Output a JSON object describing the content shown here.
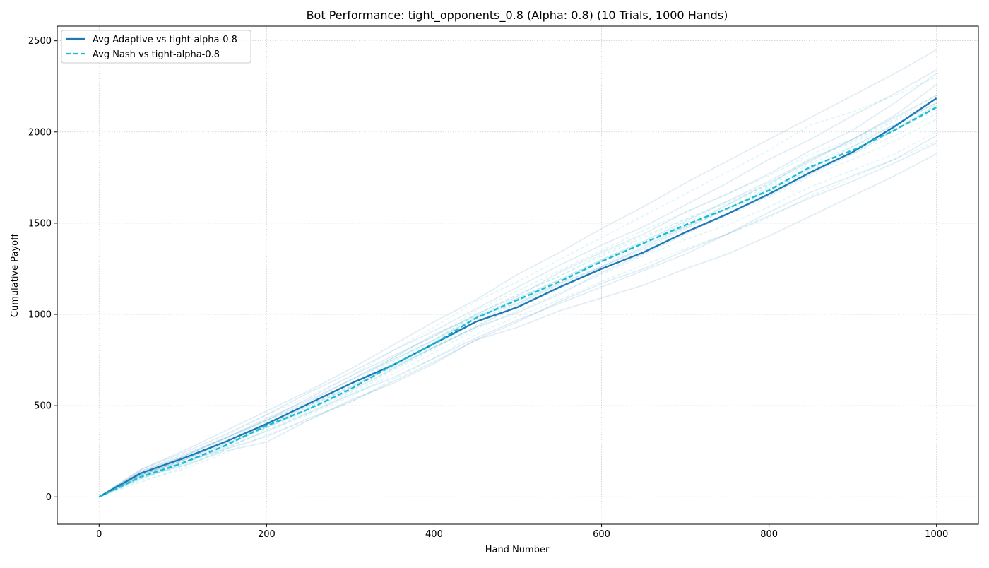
{
  "chart_data": {
    "type": "line",
    "title": "Bot Performance: tight_opponents_0.8 (Alpha: 0.8) (10 Trials, 1000 Hands)",
    "xlabel": "Hand Number",
    "ylabel": "Cumulative Payoff",
    "xlim": [
      -50,
      1050
    ],
    "ylim": [
      -150,
      2580
    ],
    "x_ticks": [
      0,
      200,
      400,
      600,
      800,
      1000
    ],
    "y_ticks": [
      0,
      500,
      1000,
      1500,
      2000,
      2500
    ],
    "grid": true,
    "legend_position": "top-left",
    "x": [
      0,
      50,
      100,
      150,
      200,
      250,
      300,
      350,
      400,
      450,
      500,
      550,
      600,
      650,
      700,
      750,
      800,
      850,
      900,
      950,
      1000
    ],
    "series": [
      {
        "name": "Avg Adaptive vs tight-alpha-0.8",
        "color": "#1f77b4",
        "style": "solid",
        "values": [
          0,
          130,
          210,
          300,
          400,
          510,
          620,
          720,
          840,
          960,
          1040,
          1150,
          1250,
          1340,
          1450,
          1550,
          1660,
          1780,
          1890,
          2030,
          2185
        ]
      },
      {
        "name": "Avg Nash vs tight-alpha-0.8",
        "color": "#17becf",
        "style": "dashed",
        "values": [
          0,
          110,
          185,
          280,
          390,
          480,
          590,
          720,
          840,
          980,
          1080,
          1180,
          1290,
          1390,
          1490,
          1580,
          1680,
          1810,
          1900,
          2010,
          2135
        ]
      }
    ],
    "trials": [
      {
        "group": "adaptive",
        "color": "#1f77b4",
        "style": "solid",
        "values": [
          0,
          150,
          250,
          360,
          470,
          580,
          700,
          830,
          960,
          1080,
          1220,
          1340,
          1470,
          1590,
          1720,
          1840,
          1960,
          2080,
          2200,
          2320,
          2450
        ]
      },
      {
        "group": "adaptive",
        "color": "#1f77b4",
        "style": "solid",
        "values": [
          0,
          120,
          190,
          260,
          330,
          430,
          520,
          630,
          740,
          860,
          930,
          1020,
          1090,
          1160,
          1250,
          1330,
          1430,
          1540,
          1650,
          1760,
          1880
        ]
      },
      {
        "group": "adaptive",
        "color": "#1f77b4",
        "style": "solid",
        "values": [
          0,
          140,
          230,
          320,
          420,
          540,
          660,
          770,
          880,
          1000,
          1100,
          1230,
          1340,
          1440,
          1560,
          1660,
          1770,
          1900,
          2010,
          2160,
          2320
        ]
      },
      {
        "group": "adaptive",
        "color": "#1f77b4",
        "style": "solid",
        "values": [
          0,
          110,
          170,
          250,
          300,
          420,
          530,
          620,
          730,
          860,
          960,
          1070,
          1170,
          1250,
          1350,
          1440,
          1560,
          1670,
          1760,
          1850,
          1980
        ]
      },
      {
        "group": "adaptive",
        "color": "#1f77b4",
        "style": "solid",
        "values": [
          0,
          130,
          220,
          320,
          420,
          520,
          640,
          760,
          890,
          990,
          1060,
          1170,
          1260,
          1370,
          1480,
          1600,
          1720,
          1840,
          1960,
          2090,
          2260
        ]
      },
      {
        "group": "adaptive",
        "color": "#1f77b4",
        "style": "solid",
        "values": [
          0,
          120,
          200,
          290,
          380,
          480,
          580,
          700,
          820,
          930,
          1010,
          1110,
          1230,
          1330,
          1440,
          1550,
          1650,
          1770,
          1880,
          2010,
          2150
        ]
      },
      {
        "group": "adaptive",
        "color": "#1f77b4",
        "style": "solid",
        "values": [
          0,
          150,
          240,
          340,
          450,
          570,
          680,
          800,
          910,
          1030,
          1150,
          1270,
          1380,
          1480,
          1600,
          1720,
          1850,
          1960,
          2090,
          2210,
          2340
        ]
      },
      {
        "group": "adaptive",
        "color": "#1f77b4",
        "style": "solid",
        "values": [
          0,
          100,
          180,
          270,
          360,
          460,
          560,
          650,
          760,
          870,
          970,
          1060,
          1150,
          1240,
          1330,
          1440,
          1540,
          1640,
          1730,
          1830,
          1940
        ]
      },
      {
        "group": "adaptive",
        "color": "#1f77b4",
        "style": "solid",
        "values": [
          0,
          140,
          220,
          320,
          430,
          530,
          640,
          750,
          860,
          980,
          1090,
          1190,
          1300,
          1400,
          1510,
          1620,
          1730,
          1850,
          1960,
          2080,
          2200
        ]
      },
      {
        "group": "adaptive",
        "color": "#1f77b4",
        "style": "solid",
        "values": [
          0,
          120,
          200,
          300,
          390,
          500,
          600,
          710,
          820,
          930,
          1050,
          1150,
          1260,
          1360,
          1470,
          1580,
          1690,
          1800,
          1920,
          2040,
          2160
        ]
      },
      {
        "group": "nash",
        "color": "#17becf",
        "style": "dashed",
        "values": [
          0,
          100,
          180,
          280,
          380,
          470,
          570,
          700,
          820,
          960,
          1070,
          1170,
          1290,
          1390,
          1480,
          1570,
          1670,
          1800,
          1880,
          1980,
          2100
        ]
      },
      {
        "group": "nash",
        "color": "#17becf",
        "style": "dashed",
        "values": [
          0,
          130,
          220,
          330,
          450,
          550,
          660,
          800,
          930,
          1070,
          1180,
          1300,
          1420,
          1540,
          1660,
          1780,
          1900,
          2040,
          2110,
          2200,
          2300
        ]
      },
      {
        "group": "nash",
        "color": "#17becf",
        "style": "dashed",
        "values": [
          0,
          90,
          150,
          240,
          340,
          420,
          520,
          640,
          760,
          890,
          990,
          1080,
          1180,
          1270,
          1360,
          1440,
          1530,
          1650,
          1750,
          1850,
          1950
        ]
      },
      {
        "group": "nash",
        "color": "#17becf",
        "style": "dashed",
        "values": [
          0,
          110,
          190,
          290,
          390,
          490,
          600,
          730,
          850,
          990,
          1090,
          1190,
          1300,
          1400,
          1500,
          1600,
          1700,
          1830,
          1920,
          2020,
          2140
        ]
      },
      {
        "group": "nash",
        "color": "#17becf",
        "style": "dashed",
        "values": [
          0,
          120,
          200,
          300,
          410,
          500,
          610,
          750,
          860,
          1000,
          1110,
          1210,
          1320,
          1420,
          1520,
          1620,
          1710,
          1850,
          1950,
          2060,
          2180
        ]
      },
      {
        "group": "nash",
        "color": "#17becf",
        "style": "dashed",
        "values": [
          0,
          80,
          160,
          260,
          360,
          450,
          550,
          670,
          790,
          920,
          1020,
          1120,
          1220,
          1320,
          1410,
          1490,
          1590,
          1700,
          1790,
          1880,
          2000
        ]
      },
      {
        "group": "nash",
        "color": "#17becf",
        "style": "dashed",
        "values": [
          0,
          120,
          210,
          310,
          420,
          510,
          620,
          760,
          880,
          1020,
          1130,
          1240,
          1350,
          1460,
          1560,
          1660,
          1760,
          1880,
          1960,
          2070,
          2200
        ]
      },
      {
        "group": "nash",
        "color": "#17becf",
        "style": "dashed",
        "values": [
          0,
          100,
          170,
          260,
          370,
          460,
          560,
          690,
          810,
          940,
          1040,
          1140,
          1250,
          1350,
          1450,
          1540,
          1640,
          1760,
          1850,
          1950,
          2070
        ]
      },
      {
        "group": "nash",
        "color": "#17becf",
        "style": "dashed",
        "values": [
          0,
          110,
          190,
          280,
          380,
          490,
          600,
          720,
          830,
          960,
          1060,
          1160,
          1270,
          1380,
          1480,
          1580,
          1680,
          1790,
          1890,
          2010,
          2120
        ]
      },
      {
        "group": "nash",
        "color": "#17becf",
        "style": "dashed",
        "values": [
          0,
          120,
          200,
          300,
          400,
          500,
          610,
          740,
          860,
          1000,
          1110,
          1210,
          1330,
          1430,
          1520,
          1610,
          1710,
          1860,
          1940,
          2040,
          2160
        ]
      }
    ]
  }
}
